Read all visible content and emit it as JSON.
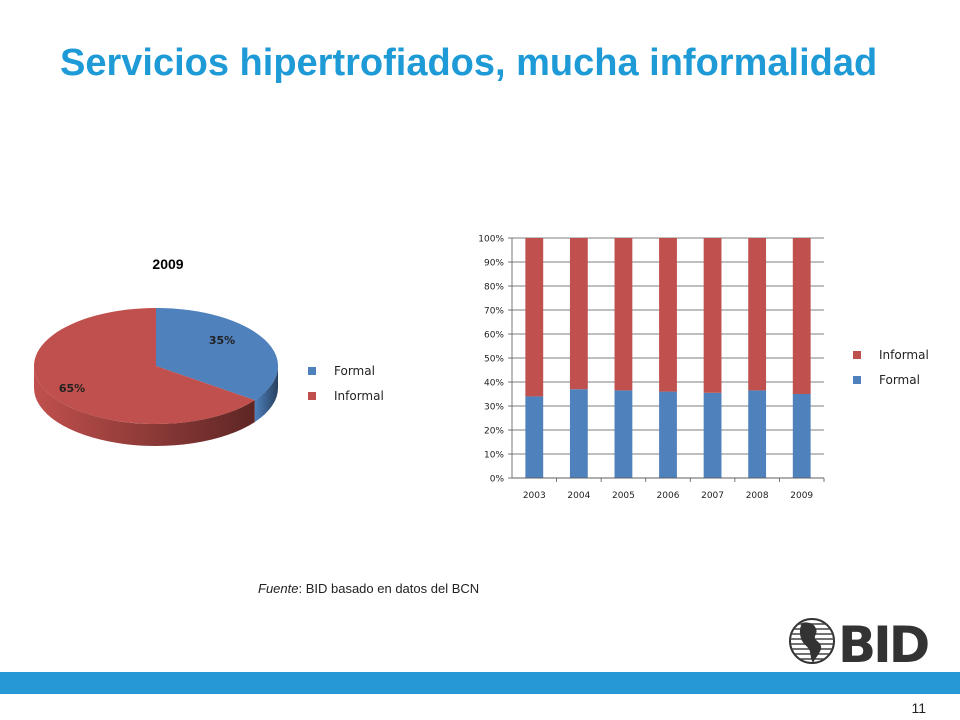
{
  "slide": {
    "title": "Servicios hipertrofiados, mucha informalidad",
    "source_label": "Fuente",
    "source_text": ": BID basado en datos del BCN",
    "logo_text": "BID",
    "page_number": "11"
  },
  "colors": {
    "formal": "#4F81BD",
    "informal": "#C0504D",
    "title": "#1E9BD6",
    "bar": "#2698D3"
  },
  "chart_data": [
    {
      "type": "pie",
      "title": "2009",
      "labels": [
        "Formal",
        "Informal"
      ],
      "values": [
        35,
        65
      ],
      "data_labels": [
        "35%",
        "65%"
      ],
      "legend": [
        "Formal",
        "Informal"
      ],
      "legend_position": "right"
    },
    {
      "type": "bar",
      "stacked": true,
      "categories": [
        "2003",
        "2004",
        "2005",
        "2006",
        "2007",
        "2008",
        "2009"
      ],
      "series": [
        {
          "name": "Formal",
          "values": [
            34,
            37,
            36.5,
            36,
            35.5,
            36.5,
            35
          ]
        },
        {
          "name": "Informal",
          "values": [
            66,
            63,
            63.5,
            64,
            64.5,
            63.5,
            65
          ]
        }
      ],
      "yticks": [
        "0%",
        "10%",
        "20%",
        "30%",
        "40%",
        "50%",
        "60%",
        "70%",
        "80%",
        "90%",
        "100%"
      ],
      "ylim": [
        0,
        100
      ],
      "grid": true,
      "legend": [
        "Informal",
        "Formal"
      ],
      "legend_position": "right"
    }
  ]
}
